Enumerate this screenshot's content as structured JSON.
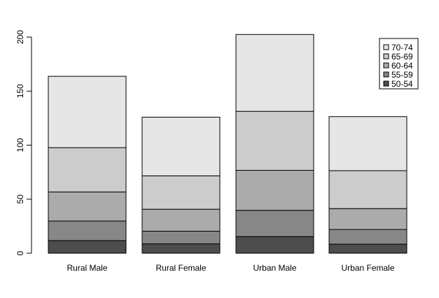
{
  "chart_data": {
    "type": "bar",
    "stacked": true,
    "title": "",
    "xlabel": "",
    "ylabel": "",
    "categories": [
      "Rural Male",
      "Rural Female",
      "Urban Male",
      "Urban Female"
    ],
    "ylim": [
      0,
      200
    ],
    "yticks": [
      0,
      50,
      100,
      150,
      200
    ],
    "grid": false,
    "legend_placement": "top-right",
    "series": [
      {
        "name": "50-54",
        "color": "#4d4d4d",
        "values": [
          11.7,
          8.7,
          15.4,
          8.4
        ]
      },
      {
        "name": "55-59",
        "color": "#878787",
        "values": [
          18.1,
          11.7,
          24.3,
          13.6
        ]
      },
      {
        "name": "60-64",
        "color": "#ababab",
        "values": [
          26.9,
          20.3,
          37.0,
          19.3
        ]
      },
      {
        "name": "65-69",
        "color": "#cccccc",
        "values": [
          41.0,
          30.9,
          54.6,
          35.1
        ]
      },
      {
        "name": "70-74",
        "color": "#e6e6e6",
        "values": [
          66.0,
          54.3,
          71.1,
          50.0
        ]
      }
    ],
    "legend_order": [
      "70-74",
      "65-69",
      "60-64",
      "55-59",
      "50-54"
    ]
  }
}
